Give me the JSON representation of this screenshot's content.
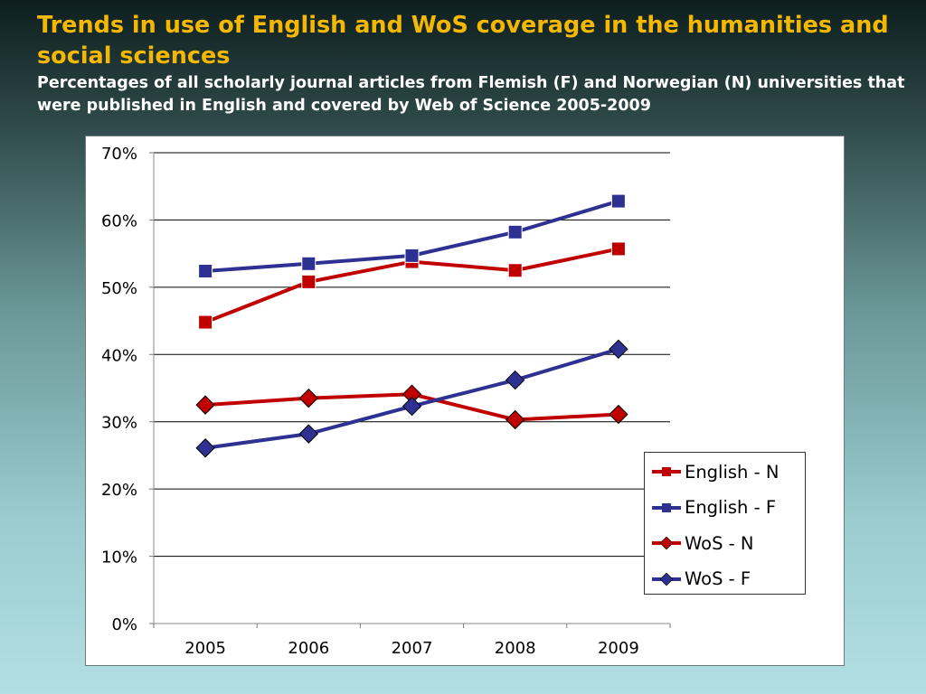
{
  "slide": {
    "title": "Trends in use of English and WoS coverage in the humanities and social sciences",
    "subtitle": "Percentages of all scholarly journal articles from Flemish (F) and Norwegian (N) universities that were published in English and covered by Web of Science 2005-2009"
  },
  "chart_data": {
    "type": "line",
    "title": "",
    "xlabel": "",
    "ylabel": "",
    "x": [
      "2005",
      "2006",
      "2007",
      "2008",
      "2009"
    ],
    "ylim": [
      0,
      70
    ],
    "yticks": [
      "0%",
      "10%",
      "20%",
      "30%",
      "40%",
      "50%",
      "60%",
      "70%"
    ],
    "grid": true,
    "legend_position": "bottom-right",
    "series": [
      {
        "name": "English - N",
        "values": [
          44.8,
          50.8,
          53.8,
          52.5,
          55.7
        ],
        "color": "#c00000",
        "marker": "square"
      },
      {
        "name": "English - F",
        "values": [
          52.4,
          53.5,
          54.7,
          58.2,
          62.8
        ],
        "color": "#2e3192",
        "marker": "square"
      },
      {
        "name": "WoS - N",
        "values": [
          32.5,
          33.5,
          34.1,
          30.3,
          31.1
        ],
        "color": "#c00000",
        "marker": "diamond"
      },
      {
        "name": "WoS - F",
        "values": [
          26.1,
          28.2,
          32.3,
          36.2,
          40.8
        ],
        "color": "#2e3192",
        "marker": "diamond"
      }
    ]
  }
}
